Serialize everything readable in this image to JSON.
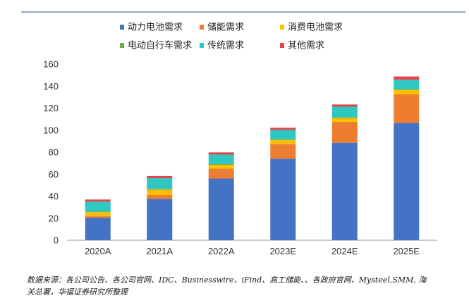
{
  "source": {
    "line1": "数据来源：各公司公告、各公司官网、IDC、Businesswire、iFind、高工储能、、各政府官网、Mysteel,SMM, 海",
    "line2": "关总署，华福证券研究所整理"
  },
  "chart_data": {
    "type": "bar",
    "stacked": true,
    "title": "",
    "xlabel": "",
    "ylabel": "",
    "categories": [
      "2020A",
      "2021A",
      "2022A",
      "2023E",
      "2024E",
      "2025E"
    ],
    "ylim": [
      0,
      160
    ],
    "yticks": [
      0,
      20,
      40,
      60,
      80,
      100,
      120,
      140,
      160
    ],
    "grid": false,
    "legend_position": "top",
    "series": [
      {
        "name": "动力电池需求",
        "color": "#4472c4",
        "values": [
          20.5,
          37.5,
          56,
          74,
          88.5,
          106.5
        ]
      },
      {
        "name": "储能需求",
        "color": "#ed7d31",
        "values": [
          1.5,
          3.5,
          9,
          13.5,
          19,
          26
        ]
      },
      {
        "name": "消费电池需求",
        "color": "#ffc000",
        "values": [
          3.5,
          5,
          3.5,
          3.5,
          3.5,
          4
        ]
      },
      {
        "name": "电动自行车需求",
        "color": "#70ad47",
        "values": [
          0.5,
          0.8,
          0.8,
          0.7,
          0.8,
          0.8
        ]
      },
      {
        "name": "传统需求",
        "color": "#2ec7c1",
        "values": [
          9,
          9.5,
          8.5,
          8.5,
          9.5,
          8.5
        ]
      },
      {
        "name": "其他需求",
        "color": "#e0474c",
        "values": [
          2,
          2,
          2,
          2,
          2,
          3
        ]
      }
    ]
  }
}
